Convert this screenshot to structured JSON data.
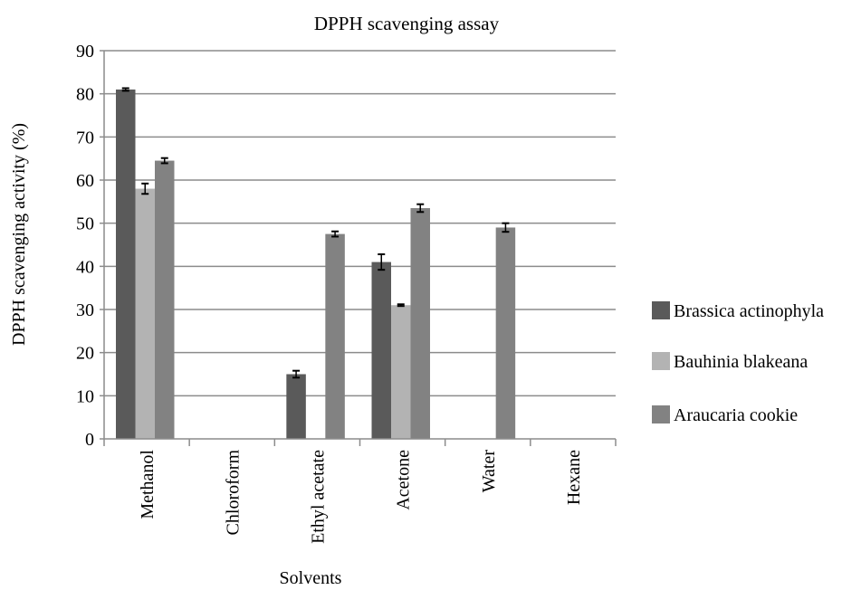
{
  "chart_data": {
    "type": "bar",
    "title": "DPPH scavenging assay",
    "xlabel": "Solvents",
    "ylabel": "DPPH scavenging activity (%)",
    "ylim": [
      0,
      90
    ],
    "yticks": [
      0,
      10,
      20,
      30,
      40,
      50,
      60,
      70,
      80,
      90
    ],
    "grid": true,
    "legend_position": "right",
    "categories": [
      "Methanol",
      "Chloroform",
      "Ethyl acetate",
      "Acetone",
      "Water",
      "Hexane"
    ],
    "series": [
      {
        "name": "Brassica actinophyla",
        "color": "#5a5a5a",
        "values": [
          81,
          null,
          15,
          41,
          null,
          null
        ],
        "errors": [
          0.3,
          null,
          0.8,
          1.8,
          null,
          null
        ]
      },
      {
        "name": "Bauhinia blakeana",
        "color": "#b3b3b3",
        "values": [
          58,
          null,
          null,
          31,
          null,
          null
        ],
        "errors": [
          1.2,
          null,
          null,
          0.2,
          null,
          null
        ]
      },
      {
        "name": "Araucaria cookie",
        "color": "#828282",
        "values": [
          64.5,
          null,
          47.5,
          53.5,
          49,
          null
        ],
        "errors": [
          0.6,
          null,
          0.6,
          0.9,
          1.0,
          null
        ]
      }
    ]
  }
}
